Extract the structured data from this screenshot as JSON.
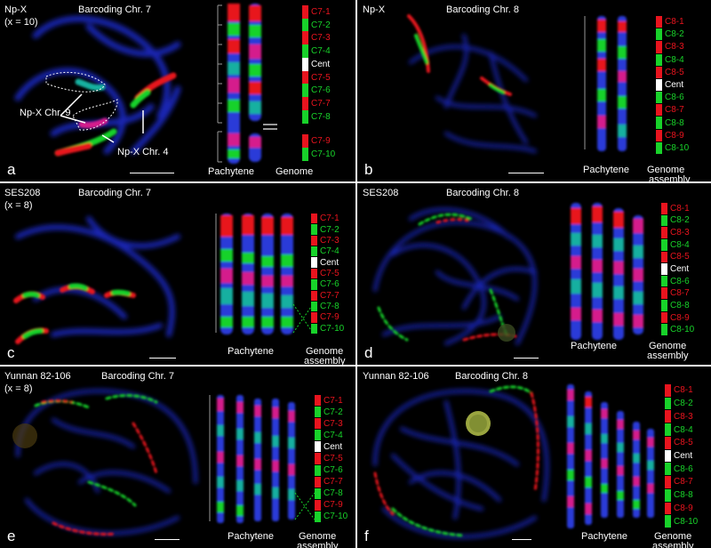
{
  "panels": [
    {
      "letter": "a",
      "sample": "Np-X",
      "ploidy": "(x = 10)",
      "title": "Barcoding Chr. 7",
      "pachytene": "Pachytene",
      "genome": [
        "Genome",
        "assembly"
      ],
      "annotations": [
        "Np-X Chr. 9",
        "Np-X Chr. 4"
      ],
      "segments": [
        "C7-1",
        "C7-2",
        "C7-3",
        "C7-4",
        "Cent",
        "C7-5",
        "C7-6",
        "C7-7",
        "C7-8",
        "C7-9",
        "C7-10"
      ]
    },
    {
      "letter": "b",
      "sample": "Np-X",
      "ploidy": "",
      "title": "Barcoding Chr. 8",
      "pachytene": "Pachytene",
      "genome": [
        "Genome",
        "assembly"
      ],
      "annotations": [],
      "segments": [
        "C8-1",
        "C8-2",
        "C8-3",
        "C8-4",
        "C8-5",
        "Cent",
        "C8-6",
        "C8-7",
        "C8-8",
        "C8-9",
        "C8-10"
      ]
    },
    {
      "letter": "c",
      "sample": "SES208",
      "ploidy": "(x = 8)",
      "title": "Barcoding Chr. 7",
      "pachytene": "Pachytene",
      "genome": [
        "Genome",
        "assembly"
      ],
      "annotations": [],
      "segments": [
        "C7-1",
        "C7-2",
        "C7-3",
        "C7-4",
        "Cent",
        "C7-5",
        "C7-6",
        "C7-7",
        "C7-8",
        "C7-9",
        "C7-10"
      ]
    },
    {
      "letter": "d",
      "sample": "SES208",
      "ploidy": "",
      "title": "Barcoding Chr. 8",
      "pachytene": "Pachytene",
      "genome": [
        "Genome",
        "assembly"
      ],
      "annotations": [],
      "segments": [
        "C8-1",
        "C8-2",
        "C8-3",
        "C8-4",
        "C8-5",
        "Cent",
        "C8-6",
        "C8-7",
        "C8-8",
        "C8-9",
        "C8-10"
      ]
    },
    {
      "letter": "e",
      "sample": "Yunnan 82-106",
      "ploidy": "(x = 8)",
      "title": "Barcoding Chr. 7",
      "pachytene": "Pachytene",
      "genome": [
        "Genome",
        "assembly"
      ],
      "annotations": [],
      "segments": [
        "C7-1",
        "C7-2",
        "C7-3",
        "C7-4",
        "Cent",
        "C7-5",
        "C7-6",
        "C7-7",
        "C7-8",
        "C7-9",
        "C7-10"
      ]
    },
    {
      "letter": "f",
      "sample": "Yunnan 82-106",
      "ploidy": "",
      "title": "Barcoding Chr. 8",
      "pachytene": "Pachytene",
      "genome": [
        "Genome",
        "assembly"
      ],
      "annotations": [],
      "segments": [
        "C8-1",
        "C8-2",
        "C8-3",
        "C8-4",
        "C8-5",
        "Cent",
        "C8-6",
        "C8-7",
        "C8-8",
        "C8-9",
        "C8-10"
      ]
    }
  ],
  "colors": {
    "red": "#e8141e",
    "green": "#18d22a",
    "white": "#ffffff",
    "dapi_blue": "#1e2fd0",
    "background": "#000000"
  }
}
